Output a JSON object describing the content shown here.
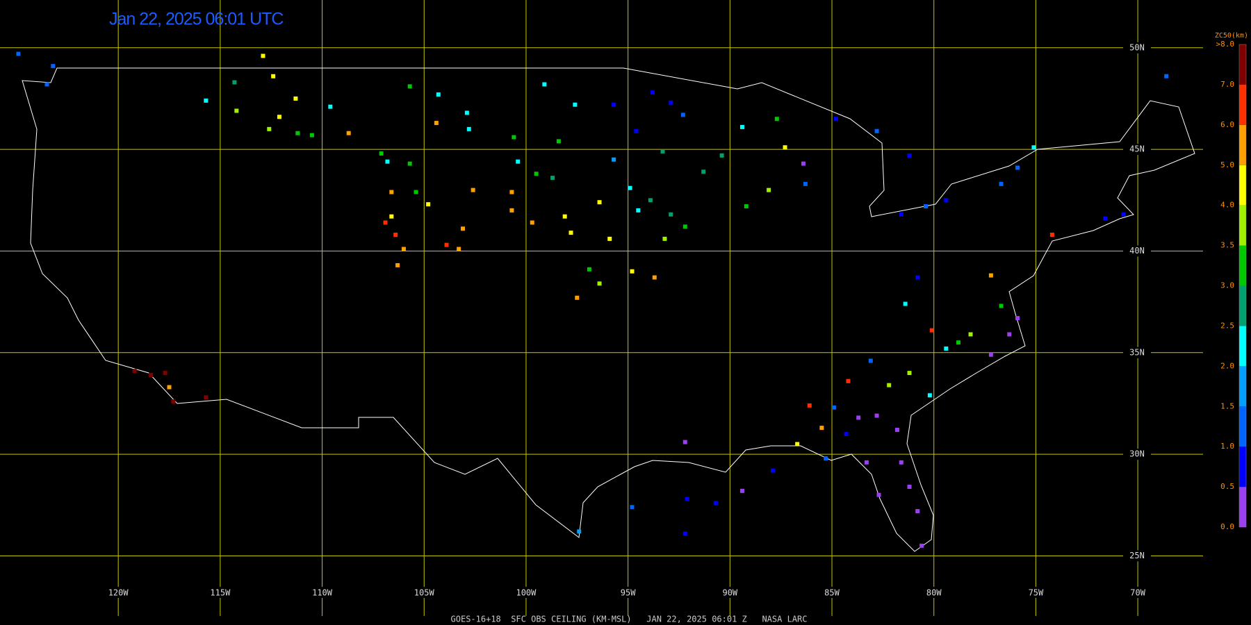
{
  "chart_data": {
    "type": "map",
    "title": "Jan 22, 2025 06:01 UTC",
    "footer": "GOES-16+18  SFC OBS CEILING (KM-MSL)   JAN 22, 2025 06:01 Z   NASA LARC",
    "xlim": [
      -125.8,
      -66.8
    ],
    "ylim": [
      21.6,
      52.35
    ],
    "xticks": [
      {
        "value": -120,
        "label": "120W"
      },
      {
        "value": -115,
        "label": "115W"
      },
      {
        "value": -110,
        "label": "110W"
      },
      {
        "value": -105,
        "label": "105W"
      },
      {
        "value": -100,
        "label": "100W"
      },
      {
        "value": -95,
        "label": "95W"
      },
      {
        "value": -90,
        "label": "90W"
      },
      {
        "value": -85,
        "label": "85W"
      },
      {
        "value": -80,
        "label": "80W"
      },
      {
        "value": -75,
        "label": "75W"
      },
      {
        "value": -70,
        "label": "70W"
      }
    ],
    "yticks": [
      {
        "value": 50,
        "label": "50N"
      },
      {
        "value": 45,
        "label": "45N"
      },
      {
        "value": 40,
        "label": "40N"
      },
      {
        "value": 35,
        "label": "35N"
      },
      {
        "value": 30,
        "label": "30N"
      },
      {
        "value": 25,
        "label": "25N"
      }
    ],
    "grid": true,
    "grid_color": "#c8c800",
    "colorbar": {
      "title": "ZC50(km)",
      "ticks": [
        {
          "value": 0,
          "label": "0.0"
        },
        {
          "value": 0.5,
          "label": "0.5"
        },
        {
          "value": 1,
          "label": "1.0"
        },
        {
          "value": 1.5,
          "label": "1.5"
        },
        {
          "value": 2,
          "label": "2.0"
        },
        {
          "value": 2.5,
          "label": "2.5"
        },
        {
          "value": 3,
          "label": "3.0"
        },
        {
          "value": 3.5,
          "label": "3.5"
        },
        {
          "value": 4,
          "label": "4.0"
        },
        {
          "value": 5,
          "label": "5.0"
        },
        {
          "value": 6,
          "label": "6.0"
        },
        {
          "value": 7,
          "label": "7.0"
        },
        {
          "value": 8,
          "label": ">8.0"
        }
      ],
      "colors": [
        "#9b3ff0",
        "#0000ff",
        "#0064ff",
        "#00a0ff",
        "#00ffff",
        "#00a070",
        "#00c800",
        "#a0f000",
        "#ffff00",
        "#ffa000",
        "#ff3000",
        "#800000"
      ]
    },
    "stations": [
      [
        -112.9,
        49.6,
        4.2
      ],
      [
        -112.4,
        48.6,
        4.2
      ],
      [
        -114.3,
        48.3,
        2.7
      ],
      [
        -114.2,
        46.9,
        3.7
      ],
      [
        -111.3,
        47.5,
        4.2
      ],
      [
        -112.1,
        46.6,
        4.2
      ],
      [
        -109.6,
        47.1,
        2.2
      ],
      [
        -108.7,
        45.8,
        5.5
      ],
      [
        -111.2,
        45.8,
        3.2
      ],
      [
        -110.5,
        45.7,
        3.2
      ],
      [
        -112.6,
        46.0,
        3.7
      ],
      [
        -115.7,
        47.4,
        2.2
      ],
      [
        -107.1,
        44.8,
        3.2
      ],
      [
        -106.8,
        44.4,
        2.2
      ],
      [
        -105.7,
        44.3,
        3.2
      ],
      [
        -106.6,
        42.9,
        5.5
      ],
      [
        -105.4,
        42.9,
        3.2
      ],
      [
        -104.8,
        42.3,
        4.2
      ],
      [
        -106.6,
        41.7,
        4.2
      ],
      [
        -106.9,
        41.4,
        6.5
      ],
      [
        -106.4,
        40.8,
        6.0
      ],
      [
        -106.0,
        40.1,
        5.5
      ],
      [
        -106.3,
        39.3,
        5.5
      ],
      [
        -103.9,
        40.3,
        6.0
      ],
      [
        -103.3,
        40.1,
        5.5
      ],
      [
        -103.1,
        41.1,
        5.5
      ],
      [
        -104.3,
        47.7,
        2.2
      ],
      [
        -105.7,
        48.1,
        3.2
      ],
      [
        -104.4,
        46.3,
        5.5
      ],
      [
        -102.9,
        46.8,
        2.2
      ],
      [
        -102.8,
        46.0,
        2.2
      ],
      [
        -100.6,
        45.6,
        3.2
      ],
      [
        -99.1,
        48.2,
        2.2
      ],
      [
        -97.6,
        47.2,
        2.2
      ],
      [
        -100.4,
        44.4,
        2.2
      ],
      [
        -99.5,
        43.8,
        3.2
      ],
      [
        -98.7,
        43.6,
        2.7
      ],
      [
        -98.4,
        45.4,
        3.2
      ],
      [
        -102.6,
        43.0,
        5.5
      ],
      [
        -100.7,
        42.9,
        5.5
      ],
      [
        -100.7,
        42.0,
        5.5
      ],
      [
        -99.7,
        41.4,
        5.5
      ],
      [
        -98.1,
        41.7,
        4.2
      ],
      [
        -97.8,
        40.9,
        4.2
      ],
      [
        -97.5,
        37.7,
        5.0
      ],
      [
        -96.4,
        42.4,
        4.0
      ],
      [
        -95.9,
        40.6,
        4.0
      ],
      [
        -94.8,
        39.0,
        4.0
      ],
      [
        -93.7,
        38.7,
        5.0
      ],
      [
        -96.9,
        39.1,
        3.2
      ],
      [
        -96.4,
        38.4,
        3.7
      ],
      [
        -95.7,
        47.2,
        0.8
      ],
      [
        -94.6,
        45.9,
        0.8
      ],
      [
        -93.8,
        47.8,
        0.8
      ],
      [
        -92.9,
        47.3,
        0.8
      ],
      [
        -92.3,
        46.7,
        1.2
      ],
      [
        -95.7,
        44.5,
        1.7
      ],
      [
        -94.9,
        43.1,
        2.2
      ],
      [
        -93.9,
        42.5,
        2.7
      ],
      [
        -92.9,
        41.8,
        2.7
      ],
      [
        -92.2,
        41.2,
        3.2
      ],
      [
        -93.2,
        40.6,
        3.7
      ],
      [
        -94.5,
        42.0,
        2.2
      ],
      [
        -93.3,
        44.9,
        2.7
      ],
      [
        -91.3,
        43.9,
        2.7
      ],
      [
        -90.4,
        44.7,
        2.7
      ],
      [
        -89.4,
        46.1,
        2.2
      ],
      [
        -89.2,
        42.2,
        3.2
      ],
      [
        -88.1,
        43.0,
        3.7
      ],
      [
        -87.3,
        45.1,
        4.2
      ],
      [
        -87.7,
        46.5,
        3.2
      ],
      [
        -86.4,
        44.3,
        0.3
      ],
      [
        -86.3,
        43.3,
        1.2
      ],
      [
        -84.8,
        46.5,
        0.8
      ],
      [
        -82.8,
        45.9,
        1.2
      ],
      [
        -81.2,
        44.7,
        0.8
      ],
      [
        -81.6,
        41.8,
        0.8
      ],
      [
        -80.4,
        42.2,
        1.2
      ],
      [
        -79.4,
        42.5,
        0.8
      ],
      [
        -76.7,
        43.3,
        1.2
      ],
      [
        -75.9,
        44.1,
        1.2
      ],
      [
        -74.2,
        40.8,
        6.8
      ],
      [
        -71.6,
        41.6,
        0.8
      ],
      [
        -70.7,
        41.8,
        0.8
      ],
      [
        -68.6,
        48.6,
        1.2
      ],
      [
        -75.1,
        45.1,
        2.2
      ],
      [
        -80.1,
        36.1,
        6.0
      ],
      [
        -79.4,
        35.2,
        2.2
      ],
      [
        -78.8,
        35.5,
        3.2
      ],
      [
        -78.2,
        35.9,
        3.7
      ],
      [
        -77.2,
        34.9,
        0.3
      ],
      [
        -76.3,
        35.9,
        0.3
      ],
      [
        -75.9,
        36.7,
        0.3
      ],
      [
        -76.7,
        37.3,
        3.2
      ],
      [
        -77.2,
        38.8,
        5.0
      ],
      [
        -80.8,
        38.7,
        0.8
      ],
      [
        -81.4,
        37.4,
        2.2
      ],
      [
        -81.2,
        34.0,
        3.7
      ],
      [
        -82.2,
        33.4,
        3.7
      ],
      [
        -80.2,
        32.9,
        2.2
      ],
      [
        -83.1,
        34.6,
        1.2
      ],
      [
        -84.2,
        33.6,
        6.8
      ],
      [
        -86.1,
        32.4,
        6.8
      ],
      [
        -85.5,
        31.3,
        5.5
      ],
      [
        -84.9,
        32.3,
        1.2
      ],
      [
        -83.7,
        31.8,
        0.3
      ],
      [
        -82.8,
        31.9,
        0.3
      ],
      [
        -81.8,
        31.2,
        0.3
      ],
      [
        -84.3,
        31.0,
        0.8
      ],
      [
        -86.7,
        30.5,
        4.2
      ],
      [
        -85.3,
        29.8,
        1.2
      ],
      [
        -83.3,
        29.6,
        0.3
      ],
      [
        -81.6,
        29.6,
        0.3
      ],
      [
        -81.2,
        28.4,
        0.3
      ],
      [
        -82.7,
        28.0,
        0.3
      ],
      [
        -80.8,
        27.2,
        0.3
      ],
      [
        -80.6,
        25.5,
        0.3
      ],
      [
        -92.2,
        30.6,
        0.3
      ],
      [
        -87.9,
        29.2,
        0.8
      ],
      [
        -89.4,
        28.2,
        0.3
      ],
      [
        -92.1,
        27.8,
        0.8
      ],
      [
        -90.7,
        27.6,
        0.8
      ],
      [
        -92.2,
        26.1,
        0.8
      ],
      [
        -94.8,
        27.4,
        1.2
      ],
      [
        -97.4,
        26.2,
        1.7
      ],
      [
        -119.2,
        34.1,
        8.5
      ],
      [
        -118.4,
        33.9,
        8.5
      ],
      [
        -117.7,
        34.0,
        8.5
      ],
      [
        -117.5,
        33.3,
        5.5
      ],
      [
        -117.3,
        32.6,
        8.5
      ],
      [
        -115.7,
        32.8,
        8.5
      ],
      [
        -124.9,
        49.7,
        1.2
      ],
      [
        -123.5,
        48.2,
        1.2
      ],
      [
        -123.2,
        49.1,
        1.2
      ]
    ]
  }
}
